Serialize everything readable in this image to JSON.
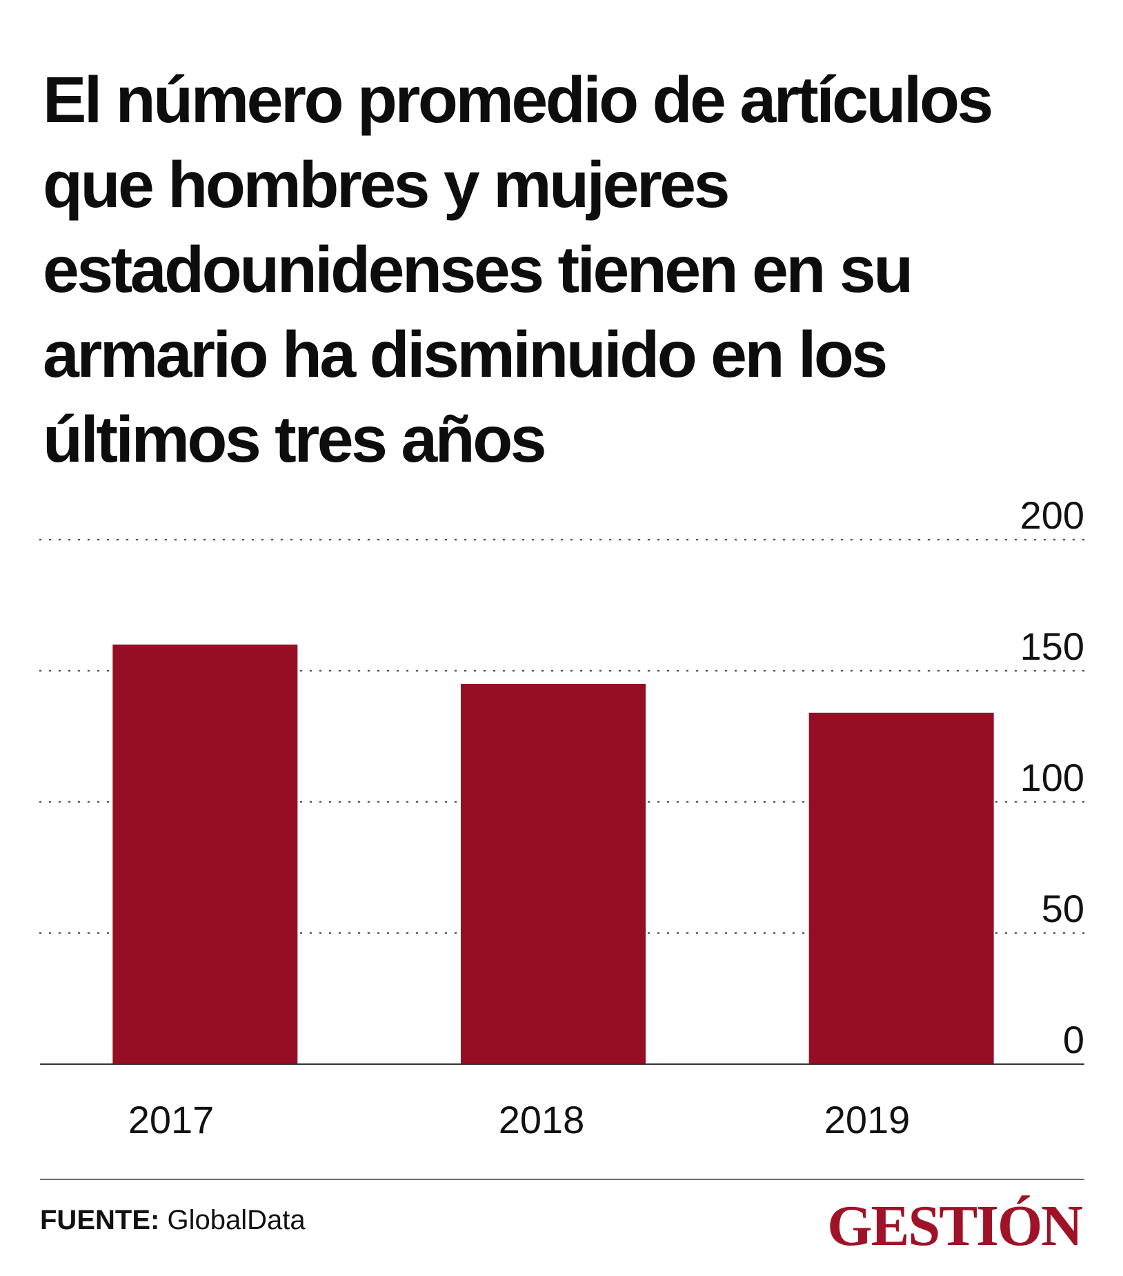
{
  "colors": {
    "bar": "#960e23",
    "grid": "#555555",
    "baseline": "#333333",
    "brand": "#a01227"
  },
  "title": "El número promedio de artículos que hombres y mujeres estadounidenses tienen en su armario ha disminuido en los últimos tres años",
  "chart_data": {
    "type": "bar",
    "title": "El número promedio de artículos que hombres y mujeres estadounidenses tienen en su armario ha disminuido en los últimos tres años",
    "categories": [
      "2017",
      "2018",
      "2019"
    ],
    "values": [
      160,
      145,
      134
    ],
    "ylim": [
      0,
      200
    ],
    "yticks": [
      "0",
      "50",
      "100",
      "150",
      "200"
    ],
    "xlabel": "",
    "ylabel": "",
    "grid": true
  },
  "footer": {
    "source_label": "FUENTE:",
    "source_value": "GlobalData",
    "brand": "GESTIÓN"
  }
}
